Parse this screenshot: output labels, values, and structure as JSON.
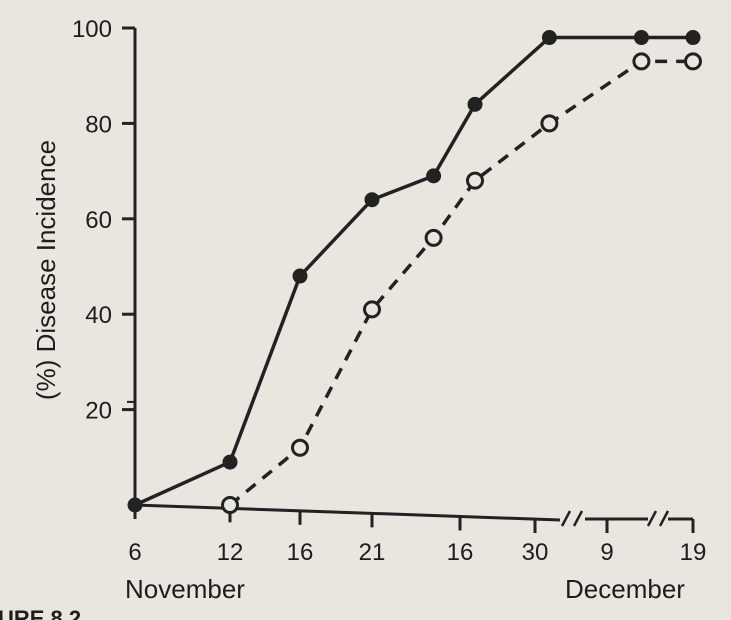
{
  "chart_data": {
    "type": "line",
    "ylabel": "(%) Disease Incidence",
    "ylim": [
      0,
      100
    ],
    "yticks": [
      20,
      40,
      60,
      80,
      100
    ],
    "x_tick_labels": [
      "6",
      "12",
      "16",
      "21",
      "16",
      "30",
      "9",
      "19"
    ],
    "x_group_labels": [
      "November",
      "December"
    ],
    "axis_breaks": 2,
    "grid": false,
    "legend": "none",
    "series": [
      {
        "style": "solid line, filled circle markers",
        "color": "#222222",
        "points": [
          [
            0,
            0
          ],
          [
            1,
            9
          ],
          [
            2,
            48
          ],
          [
            3,
            64
          ],
          [
            3.7,
            69
          ],
          [
            4.2,
            84
          ],
          [
            5.2,
            98
          ],
          [
            6.4,
            98
          ],
          [
            7.1,
            98
          ]
        ]
      },
      {
        "style": "dashed line, open circle markers",
        "color": "#222222",
        "points": [
          [
            1,
            0
          ],
          [
            2,
            12
          ],
          [
            3,
            41
          ],
          [
            3.7,
            56
          ],
          [
            4.2,
            68
          ],
          [
            5.2,
            80
          ],
          [
            6.4,
            93
          ],
          [
            7.1,
            93
          ]
        ]
      }
    ]
  },
  "caption_fragment": "URE 8.2"
}
